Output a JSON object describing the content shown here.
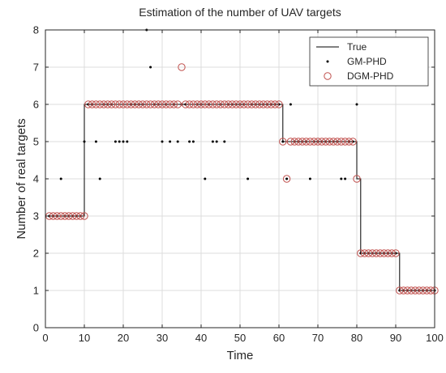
{
  "chart_data": {
    "type": "scatter",
    "title": "Estimation of the number of UAV targets",
    "xlabel": "Time",
    "ylabel": "Number of real targets",
    "xlim": [
      0,
      100
    ],
    "ylim": [
      0,
      8
    ],
    "xticks": [
      "0",
      "10",
      "20",
      "30",
      "40",
      "50",
      "60",
      "70",
      "80",
      "90",
      "100"
    ],
    "yticks": [
      "0",
      "1",
      "2",
      "3",
      "4",
      "5",
      "6",
      "7",
      "8"
    ],
    "grid": true,
    "legend_position": "top-right",
    "series": [
      {
        "name": "True",
        "kind": "step-line",
        "color": "#000000",
        "x": [
          1,
          10,
          10,
          61,
          61,
          80,
          80,
          81,
          81,
          91,
          91,
          100
        ],
        "y": [
          3,
          3,
          6,
          6,
          5,
          5,
          4,
          4,
          2,
          2,
          1,
          1
        ]
      },
      {
        "name": "GM-PHD",
        "kind": "dots",
        "color": "#000000",
        "points": [
          [
            1,
            3
          ],
          [
            2,
            3
          ],
          [
            3,
            3
          ],
          [
            4,
            4
          ],
          [
            5,
            3
          ],
          [
            6,
            3
          ],
          [
            7,
            3
          ],
          [
            8,
            3
          ],
          [
            9,
            3
          ],
          [
            10,
            5
          ],
          [
            11,
            6
          ],
          [
            12,
            6
          ],
          [
            13,
            5
          ],
          [
            14,
            4
          ],
          [
            15,
            6
          ],
          [
            16,
            6
          ],
          [
            17,
            6
          ],
          [
            18,
            5
          ],
          [
            19,
            5
          ],
          [
            20,
            5
          ],
          [
            21,
            5
          ],
          [
            22,
            6
          ],
          [
            23,
            6
          ],
          [
            24,
            6
          ],
          [
            25,
            6
          ],
          [
            26,
            8
          ],
          [
            27,
            7
          ],
          [
            28,
            6
          ],
          [
            29,
            6
          ],
          [
            30,
            5
          ],
          [
            31,
            6
          ],
          [
            32,
            5
          ],
          [
            33,
            6
          ],
          [
            34,
            5
          ],
          [
            35,
            6
          ],
          [
            36,
            6
          ],
          [
            37,
            5
          ],
          [
            38,
            5
          ],
          [
            39,
            6
          ],
          [
            40,
            6
          ],
          [
            41,
            4
          ],
          [
            42,
            6
          ],
          [
            43,
            5
          ],
          [
            44,
            5
          ],
          [
            45,
            6
          ],
          [
            46,
            5
          ],
          [
            47,
            6
          ],
          [
            48,
            6
          ],
          [
            49,
            6
          ],
          [
            50,
            6
          ],
          [
            51,
            6
          ],
          [
            52,
            4
          ],
          [
            53,
            6
          ],
          [
            54,
            6
          ],
          [
            55,
            6
          ],
          [
            56,
            6
          ],
          [
            57,
            6
          ],
          [
            58,
            6
          ],
          [
            59,
            6
          ],
          [
            60,
            6
          ],
          [
            61,
            5
          ],
          [
            62,
            4
          ],
          [
            63,
            6
          ],
          [
            64,
            5
          ],
          [
            65,
            5
          ],
          [
            66,
            5
          ],
          [
            67,
            5
          ],
          [
            68,
            4
          ],
          [
            69,
            5
          ],
          [
            70,
            5
          ],
          [
            71,
            5
          ],
          [
            72,
            5
          ],
          [
            73,
            5
          ],
          [
            74,
            5
          ],
          [
            75,
            5
          ],
          [
            76,
            4
          ],
          [
            77,
            4
          ],
          [
            78,
            5
          ],
          [
            79,
            5
          ],
          [
            80,
            6
          ],
          [
            81,
            2
          ],
          [
            82,
            2
          ],
          [
            83,
            2
          ],
          [
            84,
            2
          ],
          [
            85,
            2
          ],
          [
            86,
            2
          ],
          [
            87,
            2
          ],
          [
            88,
            2
          ],
          [
            89,
            2
          ],
          [
            90,
            2
          ],
          [
            91,
            1
          ],
          [
            92,
            1
          ],
          [
            93,
            1
          ],
          [
            94,
            1
          ],
          [
            95,
            1
          ],
          [
            96,
            1
          ],
          [
            97,
            1
          ],
          [
            98,
            1
          ],
          [
            99,
            1
          ],
          [
            100,
            1
          ]
        ]
      },
      {
        "name": "DGM-PHD",
        "kind": "circles",
        "color": "#c0504d",
        "points": [
          [
            1,
            3
          ],
          [
            2,
            3
          ],
          [
            3,
            3
          ],
          [
            4,
            3
          ],
          [
            5,
            3
          ],
          [
            6,
            3
          ],
          [
            7,
            3
          ],
          [
            8,
            3
          ],
          [
            9,
            3
          ],
          [
            10,
            3
          ],
          [
            11,
            6
          ],
          [
            12,
            6
          ],
          [
            13,
            6
          ],
          [
            14,
            6
          ],
          [
            15,
            6
          ],
          [
            16,
            6
          ],
          [
            17,
            6
          ],
          [
            18,
            6
          ],
          [
            19,
            6
          ],
          [
            20,
            6
          ],
          [
            21,
            6
          ],
          [
            22,
            6
          ],
          [
            23,
            6
          ],
          [
            24,
            6
          ],
          [
            25,
            6
          ],
          [
            26,
            6
          ],
          [
            27,
            6
          ],
          [
            28,
            6
          ],
          [
            29,
            6
          ],
          [
            30,
            6
          ],
          [
            31,
            6
          ],
          [
            32,
            6
          ],
          [
            33,
            6
          ],
          [
            34,
            6
          ],
          [
            35,
            7
          ],
          [
            36,
            6
          ],
          [
            37,
            6
          ],
          [
            38,
            6
          ],
          [
            39,
            6
          ],
          [
            40,
            6
          ],
          [
            41,
            6
          ],
          [
            42,
            6
          ],
          [
            43,
            6
          ],
          [
            44,
            6
          ],
          [
            45,
            6
          ],
          [
            46,
            6
          ],
          [
            47,
            6
          ],
          [
            48,
            6
          ],
          [
            49,
            6
          ],
          [
            50,
            6
          ],
          [
            51,
            6
          ],
          [
            52,
            6
          ],
          [
            53,
            6
          ],
          [
            54,
            6
          ],
          [
            55,
            6
          ],
          [
            56,
            6
          ],
          [
            57,
            6
          ],
          [
            58,
            6
          ],
          [
            59,
            6
          ],
          [
            60,
            6
          ],
          [
            61,
            5
          ],
          [
            62,
            4
          ],
          [
            63,
            5
          ],
          [
            64,
            5
          ],
          [
            65,
            5
          ],
          [
            66,
            5
          ],
          [
            67,
            5
          ],
          [
            68,
            5
          ],
          [
            69,
            5
          ],
          [
            70,
            5
          ],
          [
            71,
            5
          ],
          [
            72,
            5
          ],
          [
            73,
            5
          ],
          [
            74,
            5
          ],
          [
            75,
            5
          ],
          [
            76,
            5
          ],
          [
            77,
            5
          ],
          [
            78,
            5
          ],
          [
            79,
            5
          ],
          [
            80,
            4
          ],
          [
            81,
            2
          ],
          [
            82,
            2
          ],
          [
            83,
            2
          ],
          [
            84,
            2
          ],
          [
            85,
            2
          ],
          [
            86,
            2
          ],
          [
            87,
            2
          ],
          [
            88,
            2
          ],
          [
            89,
            2
          ],
          [
            90,
            2
          ],
          [
            91,
            1
          ],
          [
            92,
            1
          ],
          [
            93,
            1
          ],
          [
            94,
            1
          ],
          [
            95,
            1
          ],
          [
            96,
            1
          ],
          [
            97,
            1
          ],
          [
            98,
            1
          ],
          [
            99,
            1
          ],
          [
            100,
            1
          ]
        ]
      }
    ]
  }
}
